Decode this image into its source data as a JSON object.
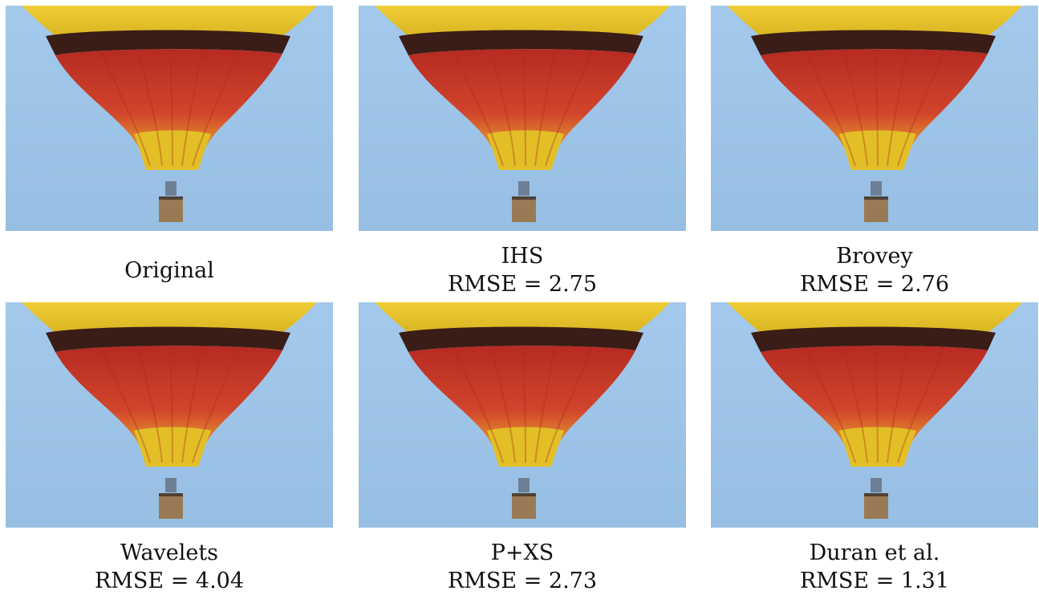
{
  "figure": {
    "panels": [
      {
        "method": "Original",
        "metric": ""
      },
      {
        "method": "IHS",
        "metric": "RMSE = 2.75"
      },
      {
        "method": "Brovey",
        "metric": "RMSE = 2.76"
      },
      {
        "method": "Wavelets",
        "metric": "RMSE = 4.04"
      },
      {
        "method": "P+XS",
        "metric": "RMSE = 2.73"
      },
      {
        "method": "Duran et al.",
        "metric": "RMSE = 1.31"
      }
    ]
  },
  "colors": {
    "sky": "#9dc4e7",
    "balloon_yellow": "#e9c52a",
    "balloon_dark_band": "#3a1d16",
    "balloon_red": "#c9372a",
    "balloon_orange": "#d7782b",
    "basket": "#9a7a55",
    "burner": "#6e7f95"
  }
}
